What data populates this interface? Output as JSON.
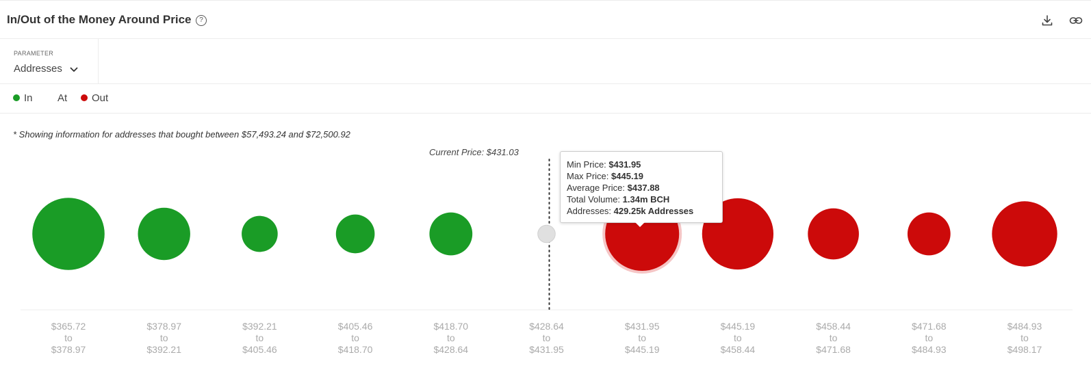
{
  "header": {
    "title": "In/Out of the Money Around Price",
    "help_icon": "?",
    "icons": [
      "download-icon",
      "link-icon"
    ]
  },
  "parameter": {
    "label": "PARAMETER",
    "value": "Addresses"
  },
  "legend": {
    "items": [
      {
        "label": "In",
        "color": "#1a9c26"
      },
      {
        "label": "At",
        "color": "#c8c8c8"
      },
      {
        "label": "Out",
        "color": "#cc0a0a"
      }
    ]
  },
  "note": "* Showing information for addresses that bought between $57,493.24 and $72,500.92",
  "current_price_label": "Current Price: $431.03",
  "tooltip": {
    "min_label": "Min Price:",
    "min_value": "$431.95",
    "max_label": "Max Price:",
    "max_value": "$445.19",
    "avg_label": "Average Price:",
    "avg_value": "$437.88",
    "vol_label": "Total Volume:",
    "vol_value": "1.34m BCH",
    "addr_label": "Addresses:",
    "addr_value": "429.25k Addresses"
  },
  "chart_data": {
    "type": "scatter",
    "title": "In/Out of the Money Around Price",
    "current_price": 431.03,
    "highlighted_index": 6,
    "buckets": [
      {
        "from": "$365.72",
        "to": "$378.97",
        "status": "In",
        "value": 410
      },
      {
        "from": "$378.97",
        "to": "$392.21",
        "status": "In",
        "value": 215
      },
      {
        "from": "$392.21",
        "to": "$405.46",
        "status": "In",
        "value": 102
      },
      {
        "from": "$405.46",
        "to": "$418.70",
        "status": "In",
        "value": 118
      },
      {
        "from": "$418.70",
        "to": "$428.64",
        "status": "In",
        "value": 145
      },
      {
        "from": "$428.64",
        "to": "$431.95",
        "status": "At",
        "value": 24
      },
      {
        "from": "$431.95",
        "to": "$445.19",
        "status": "Out",
        "value": 429.25
      },
      {
        "from": "$445.19",
        "to": "$458.44",
        "status": "Out",
        "value": 400
      },
      {
        "from": "$458.44",
        "to": "$471.68",
        "status": "Out",
        "value": 205
      },
      {
        "from": "$471.68",
        "to": "$484.93",
        "status": "Out",
        "value": 145
      },
      {
        "from": "$484.93",
        "to": "$498.17",
        "status": "Out",
        "value": 335
      }
    ],
    "connector": "to",
    "colors": {
      "In": "#1a9c26",
      "At": "#e0e0e0",
      "Out": "#cc0a0a"
    }
  }
}
